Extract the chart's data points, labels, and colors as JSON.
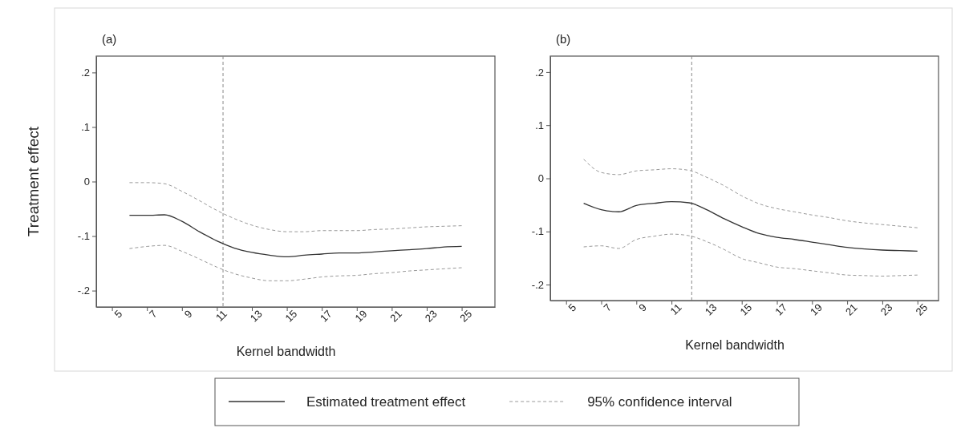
{
  "chart_data": [
    {
      "type": "line",
      "title": "(a)",
      "xlabel": "Kernel bandwidth",
      "ylabel": "Treatment effect",
      "legend": "bottom",
      "line_style": "solid",
      "marker": "none",
      "x": [
        6,
        7,
        8,
        9,
        10,
        11,
        12,
        13,
        14,
        15,
        16,
        17,
        18,
        19,
        20,
        21,
        22,
        23,
        24,
        25
      ],
      "xlim": [
        4.1,
        26.9
      ],
      "ylim": [
        -0.23,
        0.23
      ],
      "xticks": [
        5,
        7,
        9,
        11,
        13,
        15,
        17,
        19,
        21,
        23,
        25
      ],
      "yticks": [
        {
          "value": -0.2,
          "label": "-.2"
        },
        {
          "value": -0.1,
          "label": "-.1"
        },
        {
          "value": 0,
          "label": "0"
        },
        {
          "value": 0.1,
          "label": ".1"
        },
        {
          "value": 0.2,
          "label": ".2"
        }
      ],
      "series": [
        {
          "name": "Estimated treatment effect",
          "color": "#333333",
          "values": [
            -0.062,
            -0.062,
            -0.061,
            -0.073,
            -0.092,
            -0.109,
            -0.122,
            -0.13,
            -0.135,
            -0.138,
            -0.135,
            -0.133,
            -0.131,
            -0.131,
            -0.129,
            -0.127,
            -0.125,
            -0.123,
            -0.12,
            -0.119
          ]
        },
        {
          "name": "95% confidence interval",
          "color": "#999999",
          "line_style": "dashed",
          "values": [
            -0.002,
            -0.002,
            -0.004,
            -0.018,
            -0.035,
            -0.053,
            -0.068,
            -0.08,
            -0.088,
            -0.092,
            -0.092,
            -0.09,
            -0.09,
            -0.09,
            -0.088,
            -0.087,
            -0.085,
            -0.083,
            -0.082,
            -0.081
          ]
        },
        {
          "color": "#999999",
          "line_style": "dashed",
          "values": [
            -0.123,
            -0.119,
            -0.117,
            -0.128,
            -0.142,
            -0.157,
            -0.169,
            -0.177,
            -0.182,
            -0.182,
            -0.179,
            -0.175,
            -0.173,
            -0.172,
            -0.169,
            -0.167,
            -0.164,
            -0.162,
            -0.16,
            -0.158
          ]
        }
      ],
      "ref_lines": [
        {
          "axis": "x",
          "value": 11.35,
          "color": "#888888",
          "line_style": "dashed"
        }
      ]
    },
    {
      "type": "line",
      "title": "(b)",
      "xlabel": "Kernel bandwidth",
      "line_style": "solid",
      "marker": "none",
      "x": [
        6,
        7,
        8,
        9,
        10,
        11,
        12,
        13,
        14,
        15,
        16,
        17,
        18,
        19,
        20,
        21,
        22,
        23,
        24,
        25
      ],
      "xlim": [
        4.1,
        26.2
      ],
      "ylim": [
        -0.23,
        0.23
      ],
      "xticks": [
        5,
        7,
        9,
        11,
        13,
        15,
        17,
        19,
        21,
        23,
        25
      ],
      "yticks": [
        {
          "value": -0.2,
          "label": "-.2"
        },
        {
          "value": -0.1,
          "label": "-.1"
        },
        {
          "value": 0,
          "label": "0"
        },
        {
          "value": 0.1,
          "label": ".1"
        },
        {
          "value": 0.2,
          "label": ".2"
        }
      ],
      "series": [
        {
          "name": "Estimated treatment effect",
          "color": "#333333",
          "values": [
            -0.047,
            -0.059,
            -0.063,
            -0.051,
            -0.047,
            -0.044,
            -0.046,
            -0.059,
            -0.076,
            -0.091,
            -0.104,
            -0.111,
            -0.115,
            -0.12,
            -0.125,
            -0.13,
            -0.133,
            -0.135,
            -0.136,
            -0.137
          ]
        },
        {
          "name": "95% confidence interval",
          "color": "#999999",
          "line_style": "dashed",
          "values": [
            0.036,
            0.011,
            0.007,
            0.014,
            0.016,
            0.018,
            0.015,
            0.002,
            -0.014,
            -0.033,
            -0.048,
            -0.057,
            -0.063,
            -0.069,
            -0.074,
            -0.08,
            -0.084,
            -0.087,
            -0.09,
            -0.093
          ]
        },
        {
          "color": "#999999",
          "line_style": "dashed",
          "values": [
            -0.129,
            -0.127,
            -0.132,
            -0.115,
            -0.109,
            -0.105,
            -0.108,
            -0.119,
            -0.134,
            -0.151,
            -0.159,
            -0.167,
            -0.17,
            -0.174,
            -0.178,
            -0.182,
            -0.183,
            -0.184,
            -0.183,
            -0.182
          ]
        }
      ],
      "ref_lines": [
        {
          "axis": "x",
          "value": 12.15,
          "color": "#888888",
          "line_style": "dashed"
        }
      ]
    }
  ]
}
